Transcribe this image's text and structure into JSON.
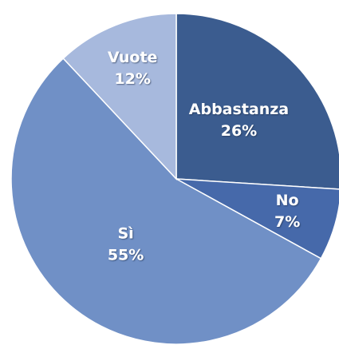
{
  "chart_data": {
    "type": "pie",
    "categories": [
      "Abbastanza",
      "No",
      "Sì",
      "Vuote"
    ],
    "values": [
      26,
      7,
      55,
      12
    ],
    "value_labels": [
      "26%",
      "7%",
      "55%",
      "12%"
    ],
    "colors": [
      "#3b5c8f",
      "#4669aa",
      "#7090c6",
      "#a7b9dd"
    ],
    "start_angle": 0,
    "direction": "clockwise"
  }
}
